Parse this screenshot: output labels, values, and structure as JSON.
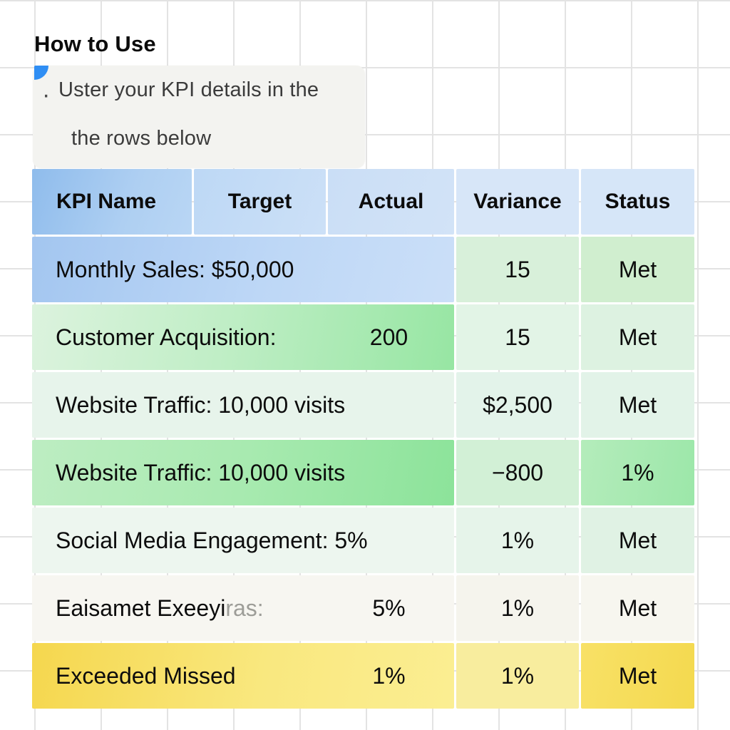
{
  "page": {
    "title": "How to Use",
    "note": {
      "bullet": "·",
      "line1": "Uster your KPI details in the",
      "line2": "the rows below"
    }
  },
  "table": {
    "headers": [
      "KPI Name",
      "Target",
      "Actual",
      "Variance",
      "Status"
    ],
    "rows": [
      {
        "kpi": "Monthly Sales: $50,000",
        "kpi_faded": "",
        "value": "",
        "variance": "15",
        "status": "Met",
        "theme": "blue"
      },
      {
        "kpi": "Customer Acquisition:",
        "kpi_faded": "",
        "value": "200",
        "variance": "15",
        "status": "Met",
        "theme": "green"
      },
      {
        "kpi": "Website Traffic: 10,000 visits",
        "kpi_faded": "",
        "value": "",
        "variance": "$2,500",
        "status": "Met",
        "theme": "pale-green"
      },
      {
        "kpi": "Website Traffic: 10,000 visits",
        "kpi_faded": "",
        "value": "",
        "variance": "−800",
        "status": "1%",
        "theme": "strong-green"
      },
      {
        "kpi": "Social Media Engagement: 5%",
        "kpi_faded": "",
        "value": "",
        "variance": "1%",
        "status": "Met",
        "theme": "pale-green"
      },
      {
        "kpi": "Eaisamet Exeeyi",
        "kpi_faded": "ras:",
        "value": "5%",
        "variance": "1%",
        "status": "Met",
        "theme": "white"
      },
      {
        "kpi": "Exceeded Missed",
        "kpi_faded": "",
        "value": "1%",
        "variance": "1%",
        "status": "Met",
        "theme": "yellow"
      }
    ],
    "colors": {
      "header_blue": "#8fbcec",
      "row_blue": "#a3c6f0",
      "row_green": "#97e6a3",
      "row_pale_green": "#e7f4eb",
      "row_yellow": "#f5d74e",
      "note_accent_blue": "#2f8ef4",
      "grid_line": "#e3e3e3",
      "note_bg": "#f3f3f0"
    }
  }
}
